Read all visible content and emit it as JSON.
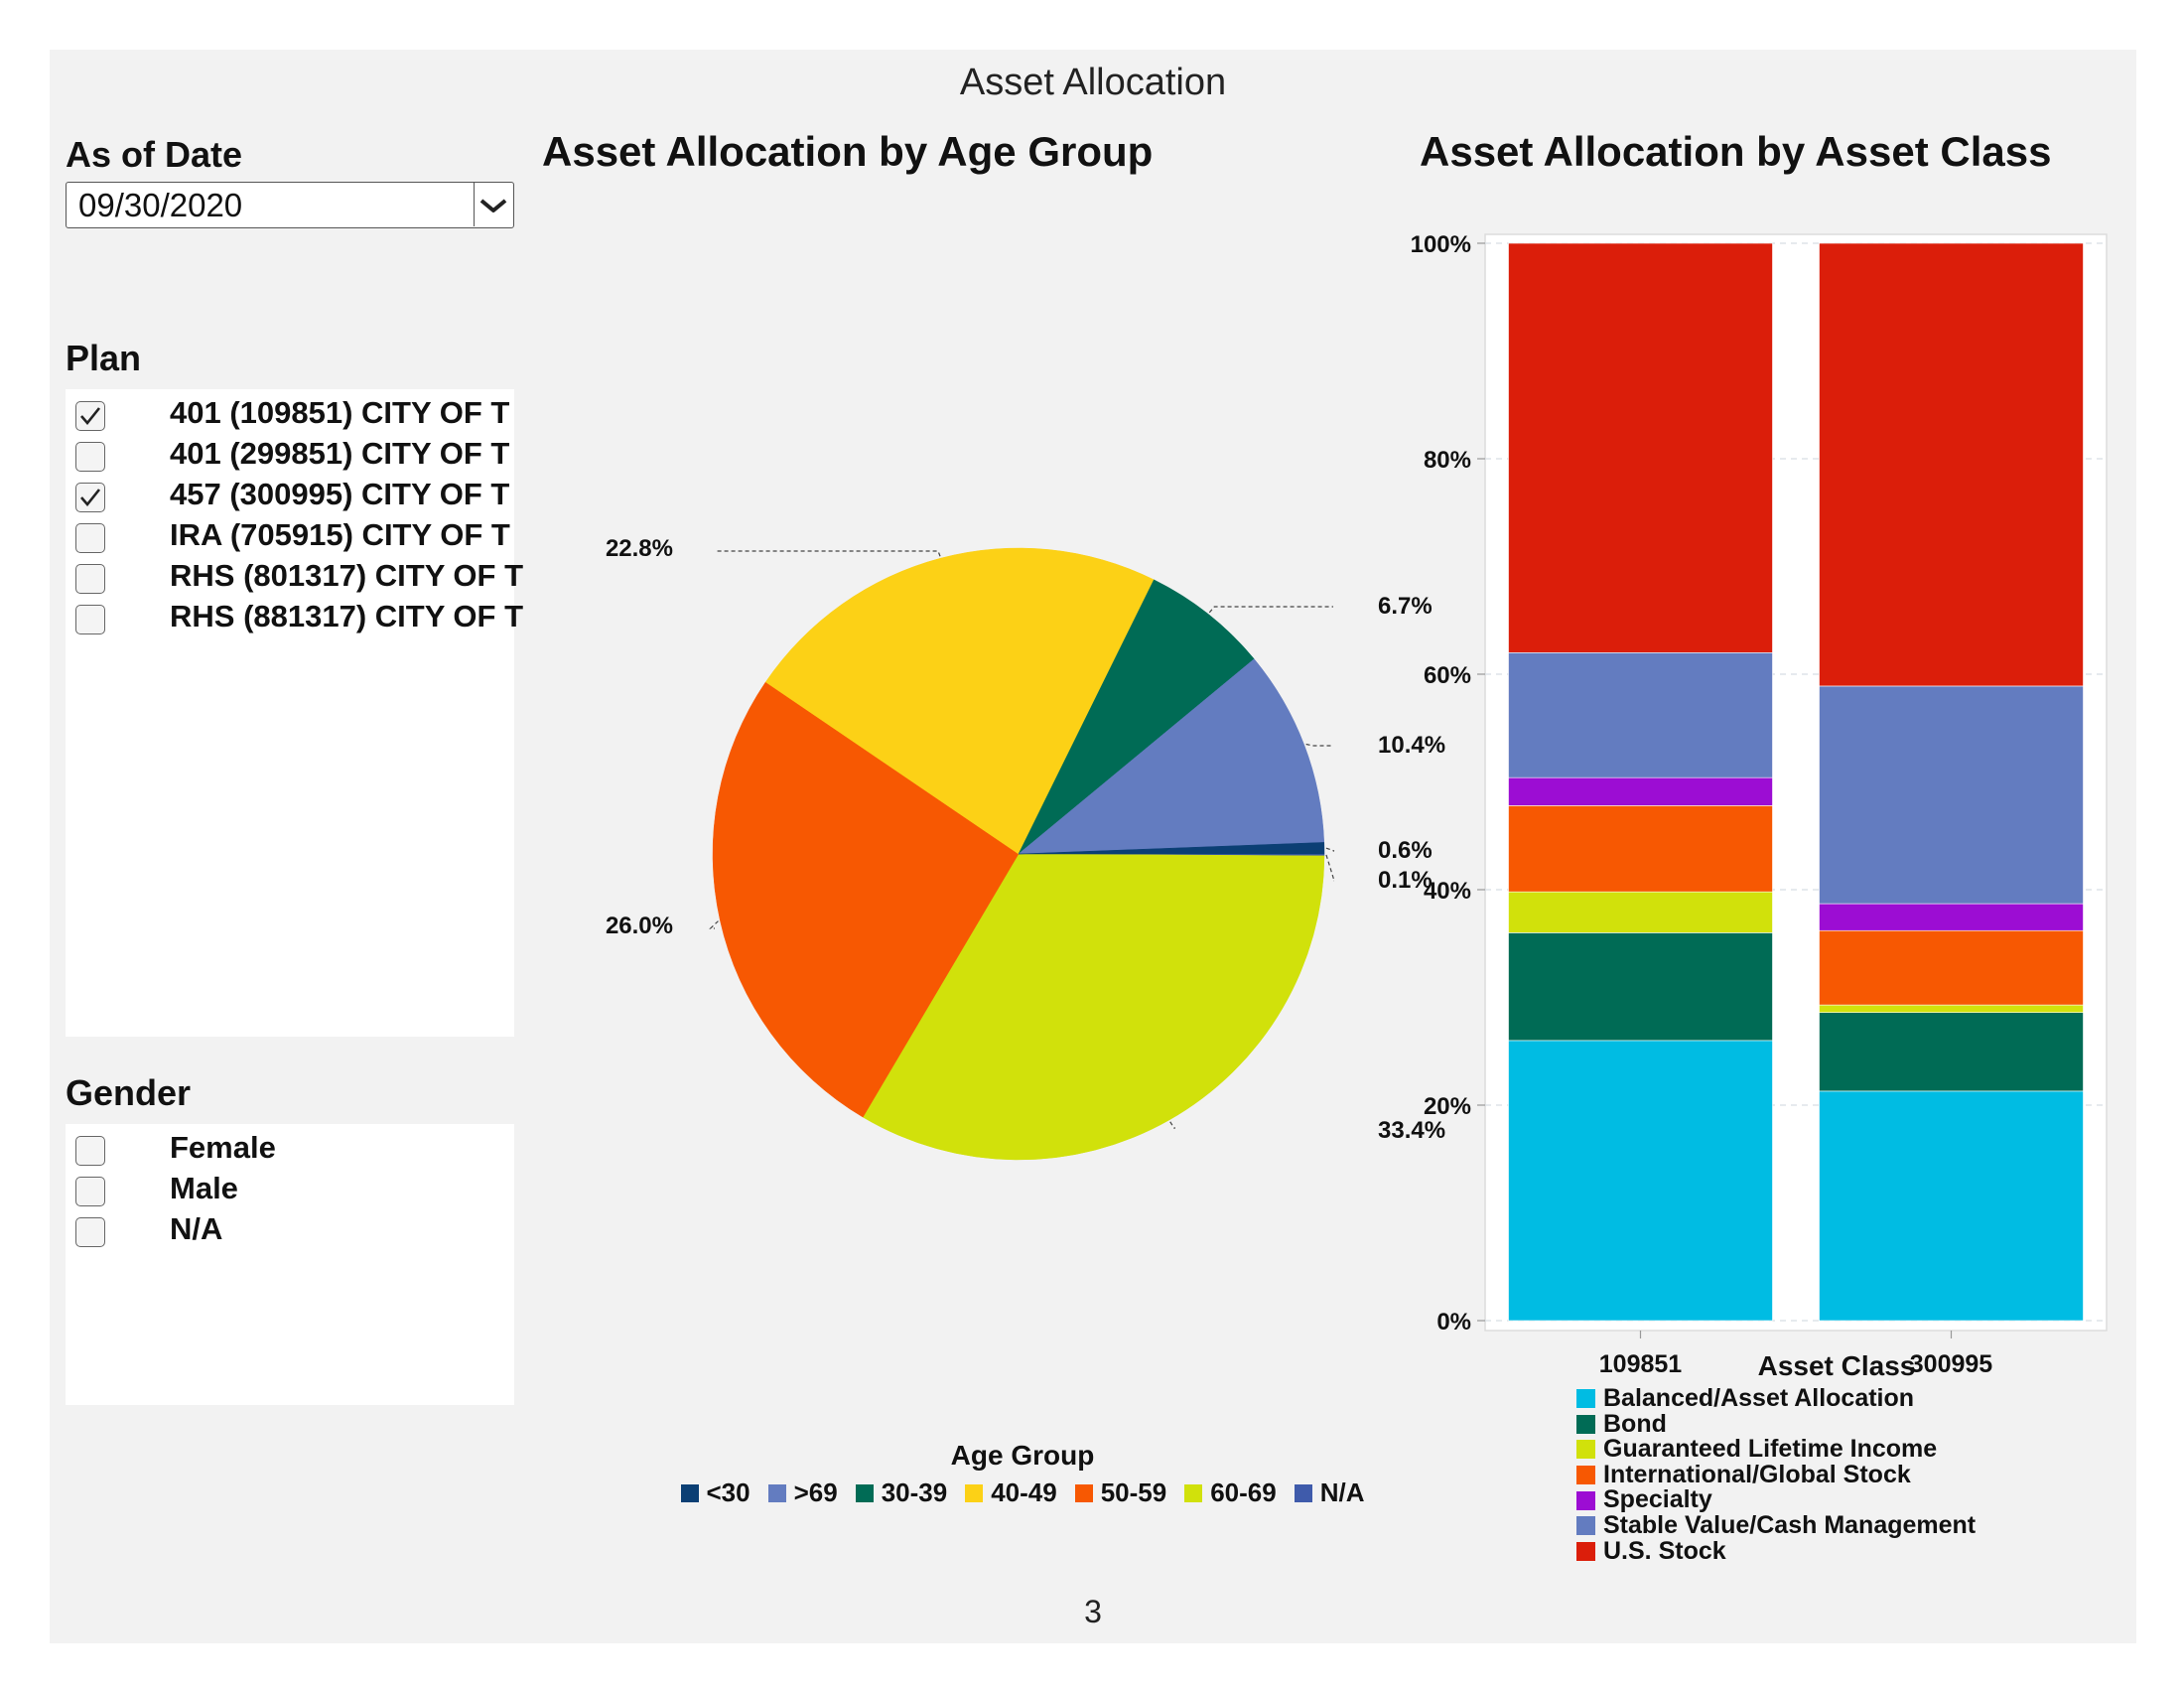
{
  "page": {
    "title": "Asset Allocation",
    "page_number": "3"
  },
  "filters": {
    "as_of_date": {
      "label": "As of  Date",
      "value": "09/30/2020",
      "dropdown_icon": "chevron-down-icon"
    },
    "plan": {
      "label": "Plan",
      "items": [
        {
          "label": "401 (109851) CITY OF T",
          "checked": true
        },
        {
          "label": "401 (299851) CITY OF T",
          "checked": false
        },
        {
          "label": "457 (300995) CITY OF T",
          "checked": true
        },
        {
          "label": "IRA (705915) CITY OF T",
          "checked": false
        },
        {
          "label": "RHS (801317) CITY OF T",
          "checked": false
        },
        {
          "label": "RHS (881317) CITY OF T",
          "checked": false
        }
      ]
    },
    "gender": {
      "label": "Gender",
      "items": [
        {
          "label": "Female",
          "checked": false
        },
        {
          "label": "Male",
          "checked": false
        },
        {
          "label": "N/A",
          "checked": false
        }
      ]
    }
  },
  "chart_data": [
    {
      "type": "pie",
      "title": "Asset Allocation by Age Group",
      "legend_title": "Age Group",
      "legend_position": "bottom",
      "slices": [
        {
          "name": "<30",
          "value": 0.6,
          "label": "0.6%",
          "color": "#0b3f74"
        },
        {
          "name": ">69",
          "value": 10.4,
          "label": "10.4%",
          "color": "#637cc0"
        },
        {
          "name": "30-39",
          "value": 6.7,
          "label": "6.7%",
          "color": "#006b55"
        },
        {
          "name": "40-49",
          "value": 22.8,
          "label": "22.8%",
          "color": "#fcd116"
        },
        {
          "name": "50-59",
          "value": 26.0,
          "label": "26.0%",
          "color": "#f75802"
        },
        {
          "name": "60-69",
          "value": 33.4,
          "label": "33.4%",
          "color": "#d1e10b"
        },
        {
          "name": "N/A",
          "value": 0.1,
          "label": "0.1%",
          "color": "#3f5bab"
        }
      ]
    },
    {
      "type": "bar",
      "stacked": true,
      "title": "Asset Allocation by Asset  Class",
      "legend_title": "Asset Class",
      "legend_position": "bottom",
      "categories": [
        "109851",
        "300995"
      ],
      "y_ticks": [
        "0%",
        "20%",
        "40%",
        "60%",
        "80%",
        "100%"
      ],
      "ylim": [
        0,
        100
      ],
      "grid": true,
      "series": [
        {
          "name": "Balanced/Asset Allocation",
          "color": "#00bce3",
          "values": [
            26.0,
            21.3
          ]
        },
        {
          "name": "Bond",
          "color": "#006b55",
          "values": [
            10.0,
            7.3
          ]
        },
        {
          "name": "Guaranteed Lifetime Income",
          "color": "#d1e10b",
          "values": [
            3.8,
            0.7
          ]
        },
        {
          "name": "International/Global Stock",
          "color": "#f75802",
          "values": [
            8.0,
            6.9
          ]
        },
        {
          "name": "Specialty",
          "color": "#9c0dd3",
          "values": [
            2.6,
            2.5
          ]
        },
        {
          "name": "Stable Value/Cash Management",
          "color": "#637cc0",
          "values": [
            11.6,
            20.2
          ]
        },
        {
          "name": "U.S. Stock",
          "color": "#db1e0a",
          "values": [
            38.0,
            41.1
          ]
        }
      ]
    }
  ]
}
